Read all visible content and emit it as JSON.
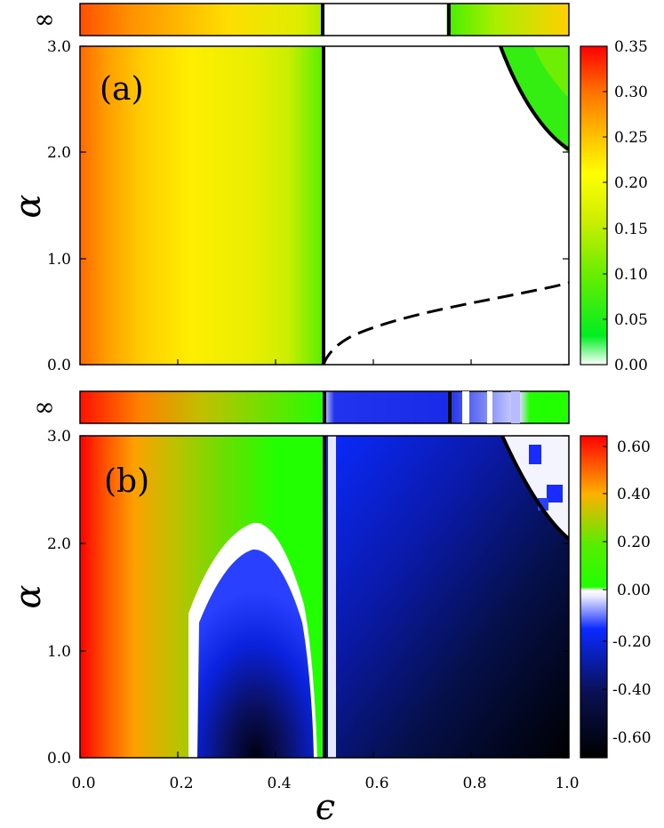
{
  "chart_data": [
    {
      "type": "heatmap",
      "panel_label": "(a)",
      "xlabel": "ϵ",
      "ylabel": "α",
      "xlim": [
        0.0,
        1.0
      ],
      "ylim": [
        0.0,
        3.0
      ],
      "x_ticks": [
        "0.0",
        "0.2",
        "0.4",
        "0.6",
        "0.8",
        "1.0"
      ],
      "y_ticks": [
        "0.0",
        "1.0",
        "2.0",
        "3.0"
      ],
      "inf_row_label": "∞",
      "colorbar": {
        "range": [
          0.0,
          0.35
        ],
        "ticks": [
          "0.00",
          "0.05",
          "0.10",
          "0.15",
          "0.20",
          "0.25",
          "0.30",
          "0.35"
        ],
        "colors": [
          "#ffffff",
          "#00ee22",
          "#66ee00",
          "#ccee00",
          "#ffff00",
          "#ffc000",
          "#ff7000",
          "#ff0000"
        ]
      },
      "approx_values": {
        "eps": [
          0.0,
          0.05,
          0.1,
          0.2,
          0.3,
          0.4,
          0.45,
          0.5
        ],
        "value": [
          0.32,
          0.29,
          0.26,
          0.23,
          0.22,
          0.19,
          0.13,
          0.08
        ],
        "region_eps_gt_0_5": 0.0,
        "corner_region_value": 0.07
      },
      "boundaries": {
        "vertical_solid_eps": 0.5,
        "corner_curve_solid": [
          [
            0.86,
            3.0
          ],
          [
            0.9,
            2.65
          ],
          [
            0.95,
            2.32
          ],
          [
            1.0,
            2.05
          ]
        ],
        "dashed_curve": [
          [
            0.5,
            0.0
          ],
          [
            0.52,
            0.14
          ],
          [
            0.6,
            0.35
          ],
          [
            0.7,
            0.5
          ],
          [
            0.8,
            0.62
          ],
          [
            0.9,
            0.72
          ],
          [
            1.0,
            0.8
          ]
        ]
      },
      "inf_row_eps_zero_interval": [
        0.5,
        0.75
      ]
    },
    {
      "type": "heatmap",
      "panel_label": "(b)",
      "xlabel": "ϵ",
      "ylabel": "α",
      "xlim": [
        0.0,
        1.0
      ],
      "ylim": [
        0.0,
        3.0
      ],
      "x_ticks": [
        "0.0",
        "0.2",
        "0.4",
        "0.6",
        "0.8",
        "1.0"
      ],
      "y_ticks": [
        "0.0",
        "1.0",
        "2.0",
        "3.0"
      ],
      "inf_row_label": "∞",
      "colorbar": {
        "range": [
          -0.7,
          0.65
        ],
        "ticks": [
          "-0.60",
          "-0.40",
          "-0.20",
          "0.00",
          "0.20",
          "0.40",
          "0.60"
        ],
        "colors": [
          "#000000",
          "#0a1050",
          "#0a2aff",
          "#ffffff",
          "#22ff00",
          "#ffb000",
          "#ff0000"
        ]
      },
      "approx_values": {
        "eps": [
          0.0,
          0.05,
          0.1,
          0.2,
          0.3,
          0.45
        ],
        "value": [
          0.62,
          0.45,
          0.3,
          0.12,
          0.02,
          0.02
        ],
        "dome_region": {
          "eps_range": [
            0.23,
            0.48
          ],
          "alpha_max": 2.05,
          "min_value": -0.68
        },
        "right_region": {
          "eps_range": [
            0.5,
            1.0
          ],
          "min_value": -0.7,
          "max_value": -0.2
        }
      },
      "boundaries": {
        "vertical_solid_eps": 0.5,
        "corner_curve_solid": [
          [
            0.86,
            3.0
          ],
          [
            0.9,
            2.65
          ],
          [
            0.95,
            2.32
          ],
          [
            1.0,
            2.05
          ]
        ]
      },
      "inf_row_black_line_eps": 0.75
    }
  ]
}
